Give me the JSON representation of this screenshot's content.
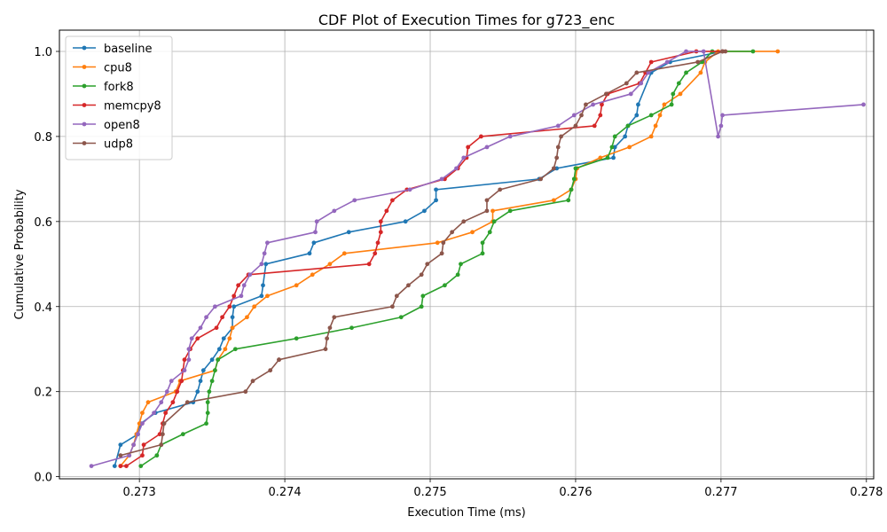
{
  "chart_data": {
    "type": "line",
    "title": "CDF Plot of Execution Times for g723_enc",
    "xlabel": "Execution Time (ms)",
    "ylabel": "Cumulative Probability",
    "xlim": [
      0.27245,
      0.27805
    ],
    "ylim": [
      -0.005,
      1.05
    ],
    "xticks": [
      "0.273",
      "0.274",
      "0.275",
      "0.276",
      "0.277",
      "0.278"
    ],
    "yticks": [
      "0.0",
      "0.2",
      "0.4",
      "0.6",
      "0.8",
      "1.0"
    ],
    "grid": true,
    "legend_position": "top-left",
    "series": [
      {
        "name": "baseline",
        "color": "#1f77b4",
        "x": [
          0.27283,
          0.27287,
          0.27299,
          0.27301,
          0.27311,
          0.27337,
          0.2734,
          0.27342,
          0.27344,
          0.2735,
          0.27355,
          0.27358,
          0.27364,
          0.27364,
          0.27365,
          0.27384,
          0.27385,
          0.27387,
          0.27417,
          0.2742,
          0.27444,
          0.27483,
          0.27496,
          0.27504,
          0.27504,
          0.27575,
          0.27587,
          0.27626,
          0.27627,
          0.27634,
          0.27636,
          0.27642,
          0.27643,
          0.27652,
          0.27665,
          0.27701
        ],
        "y": [
          0.025,
          0.075,
          0.1,
          0.125,
          0.15,
          0.175,
          0.2,
          0.225,
          0.25,
          0.275,
          0.3,
          0.325,
          0.35,
          0.375,
          0.4,
          0.425,
          0.45,
          0.5,
          0.525,
          0.55,
          0.575,
          0.6,
          0.625,
          0.65,
          0.675,
          0.7,
          0.725,
          0.75,
          0.775,
          0.8,
          0.825,
          0.85,
          0.875,
          0.95,
          0.975,
          1.0
        ]
      },
      {
        "name": "cpu8",
        "color": "#ff7f0e",
        "x": [
          0.27287,
          0.27293,
          0.27296,
          0.27298,
          0.273,
          0.27302,
          0.27306,
          0.27325,
          0.27328,
          0.27352,
          0.27354,
          0.27359,
          0.27362,
          0.27364,
          0.27374,
          0.27379,
          0.27388,
          0.27408,
          0.27419,
          0.27431,
          0.27441,
          0.27505,
          0.27529,
          0.27543,
          0.27543,
          0.27585,
          0.27597,
          0.276,
          0.27601,
          0.27617,
          0.27637,
          0.27652,
          0.27655,
          0.27658,
          0.27661,
          0.27672,
          0.27686,
          0.27689,
          0.27698,
          0.27739
        ],
        "y": [
          0.025,
          0.05,
          0.075,
          0.1,
          0.125,
          0.15,
          0.175,
          0.2,
          0.225,
          0.25,
          0.275,
          0.3,
          0.325,
          0.35,
          0.375,
          0.4,
          0.425,
          0.45,
          0.475,
          0.5,
          0.525,
          0.55,
          0.575,
          0.6,
          0.625,
          0.65,
          0.675,
          0.7,
          0.725,
          0.75,
          0.775,
          0.8,
          0.825,
          0.85,
          0.875,
          0.9,
          0.95,
          0.975,
          1.0,
          1.0
        ]
      },
      {
        "name": "fork8",
        "color": "#2ca02c",
        "x": [
          0.27301,
          0.27312,
          0.27315,
          0.2733,
          0.27346,
          0.27347,
          0.27347,
          0.27348,
          0.2735,
          0.27352,
          0.27354,
          0.27366,
          0.27408,
          0.27446,
          0.2748,
          0.27494,
          0.27495,
          0.2751,
          0.27519,
          0.27521,
          0.27536,
          0.27536,
          0.27541,
          0.27544,
          0.27555,
          0.27595,
          0.27597,
          0.27599,
          0.276,
          0.27622,
          0.27625,
          0.27627,
          0.27636,
          0.27652,
          0.27666,
          0.27667,
          0.27671,
          0.27676,
          0.27687,
          0.27694,
          0.27722
        ],
        "y": [
          0.025,
          0.05,
          0.075,
          0.1,
          0.125,
          0.15,
          0.175,
          0.2,
          0.225,
          0.25,
          0.275,
          0.3,
          0.325,
          0.35,
          0.375,
          0.4,
          0.425,
          0.45,
          0.475,
          0.5,
          0.525,
          0.55,
          0.575,
          0.6,
          0.625,
          0.65,
          0.675,
          0.7,
          0.725,
          0.75,
          0.775,
          0.8,
          0.825,
          0.85,
          0.875,
          0.9,
          0.925,
          0.95,
          0.975,
          1.0,
          1.0
        ]
      },
      {
        "name": "memcpy8",
        "color": "#d62728",
        "x": [
          0.27287,
          0.27291,
          0.27302,
          0.27303,
          0.27314,
          0.27316,
          0.27318,
          0.27323,
          0.27326,
          0.27329,
          0.2733,
          0.27331,
          0.27335,
          0.2734,
          0.27353,
          0.27357,
          0.27362,
          0.27365,
          0.27368,
          0.27375,
          0.27458,
          0.27462,
          0.27464,
          0.27466,
          0.27466,
          0.2747,
          0.27474,
          0.27484,
          0.2751,
          0.27519,
          0.27525,
          0.27526,
          0.27535,
          0.27613,
          0.27617,
          0.27618,
          0.27622,
          0.27644,
          0.27648,
          0.27652,
          0.27683,
          0.27701
        ],
        "y": [
          0.025,
          0.025,
          0.05,
          0.075,
          0.1,
          0.125,
          0.15,
          0.175,
          0.2,
          0.225,
          0.25,
          0.275,
          0.3,
          0.325,
          0.35,
          0.375,
          0.4,
          0.425,
          0.45,
          0.475,
          0.5,
          0.525,
          0.55,
          0.575,
          0.6,
          0.625,
          0.65,
          0.675,
          0.7,
          0.725,
          0.75,
          0.775,
          0.8,
          0.825,
          0.85,
          0.875,
          0.9,
          0.925,
          0.95,
          0.975,
          1.0,
          1.0
        ]
      },
      {
        "name": "open8",
        "color": "#9467bd",
        "x": [
          0.27267,
          0.27293,
          0.27296,
          0.27299,
          0.27302,
          0.2731,
          0.27315,
          0.27319,
          0.27322,
          0.27331,
          0.27334,
          0.27334,
          0.27336,
          0.27342,
          0.27346,
          0.27352,
          0.2737,
          0.27372,
          0.27376,
          0.27384,
          0.27386,
          0.27388,
          0.27421,
          0.27422,
          0.27434,
          0.27448,
          0.27486,
          0.27508,
          0.27518,
          0.27523,
          0.27539,
          0.27555,
          0.27588,
          0.27599,
          0.27612,
          0.27638,
          0.27645,
          0.2765,
          0.27663,
          0.27676,
          0.27688,
          0.27698,
          0.277,
          0.27701,
          0.27798
        ],
        "y": [
          0.025,
          0.05,
          0.075,
          0.1,
          0.125,
          0.15,
          0.175,
          0.2,
          0.225,
          0.25,
          0.275,
          0.3,
          0.325,
          0.35,
          0.375,
          0.4,
          0.425,
          0.45,
          0.475,
          0.5,
          0.525,
          0.55,
          0.575,
          0.6,
          0.625,
          0.65,
          0.675,
          0.7,
          0.725,
          0.75,
          0.775,
          0.8,
          0.825,
          0.85,
          0.875,
          0.9,
          0.925,
          0.95,
          0.975,
          1.0,
          1.0,
          0.8,
          0.825,
          0.85,
          0.875
        ]
      },
      {
        "name": "udp8",
        "color": "#8c564b",
        "x": [
          0.27287,
          0.27315,
          0.27316,
          0.27317,
          0.27333,
          0.27373,
          0.27378,
          0.2739,
          0.27396,
          0.27396,
          0.27428,
          0.27429,
          0.27431,
          0.27434,
          0.27474,
          0.27477,
          0.27485,
          0.27494,
          0.27498,
          0.27508,
          0.27509,
          0.27515,
          0.27523,
          0.27539,
          0.27539,
          0.27548,
          0.27576,
          0.27585,
          0.27587,
          0.27588,
          0.2759,
          0.276,
          0.27604,
          0.27607,
          0.27621,
          0.27635,
          0.27642,
          0.27684,
          0.27701,
          0.27703
        ],
        "y": [
          0.05,
          0.075,
          0.1,
          0.125,
          0.175,
          0.2,
          0.225,
          0.25,
          0.275,
          0.275,
          0.3,
          0.325,
          0.35,
          0.375,
          0.4,
          0.425,
          0.45,
          0.475,
          0.5,
          0.525,
          0.55,
          0.575,
          0.6,
          0.625,
          0.65,
          0.675,
          0.7,
          0.725,
          0.75,
          0.775,
          0.8,
          0.825,
          0.85,
          0.875,
          0.9,
          0.925,
          0.95,
          0.975,
          1.0,
          1.0
        ]
      }
    ]
  }
}
